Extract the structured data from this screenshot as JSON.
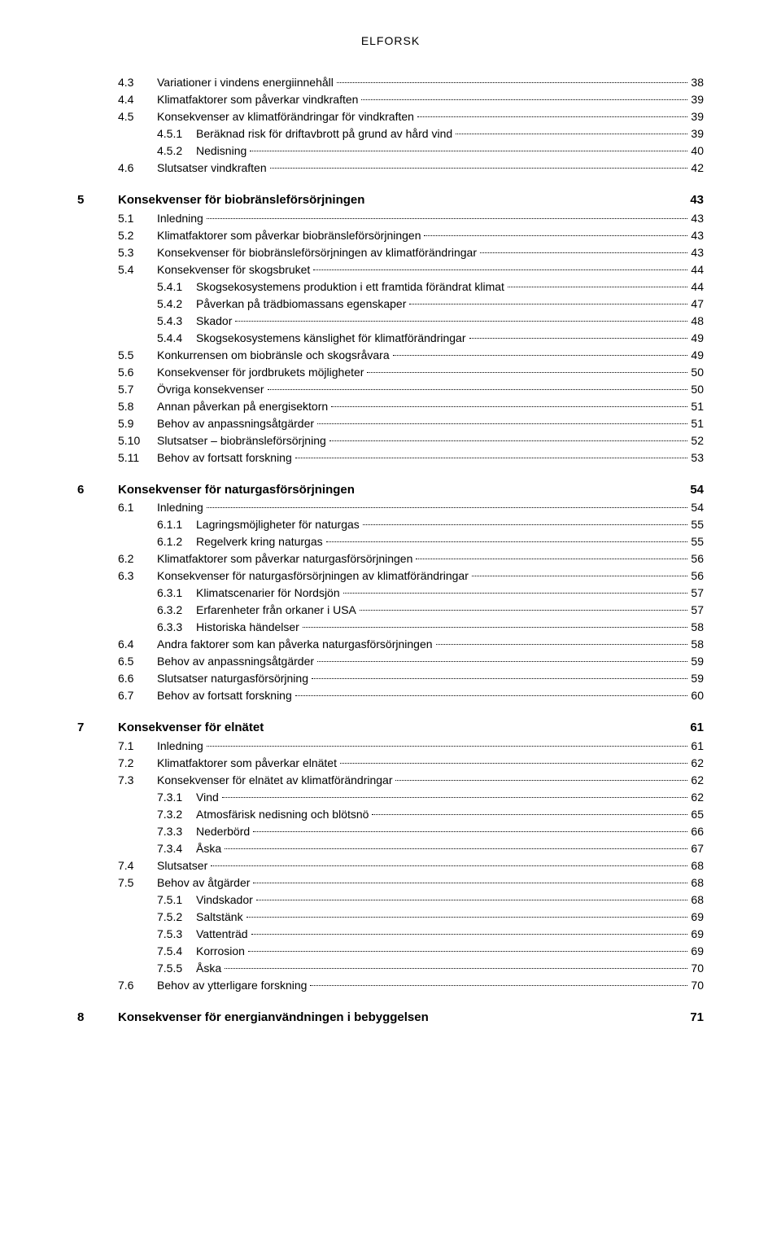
{
  "brand": "ELFORSK",
  "style": {
    "font_family": "Arial",
    "body_font_size": 14,
    "heading_font_size": 15,
    "text_color": "#000000",
    "background_color": "#ffffff",
    "leader_style": "dotted"
  },
  "toc": [
    {
      "level": 2,
      "num": "4.3",
      "label": "Variationer i vindens energiinnehåll",
      "page": "38"
    },
    {
      "level": 2,
      "num": "4.4",
      "label": "Klimatfaktorer som påverkar vindkraften",
      "page": "39"
    },
    {
      "level": 2,
      "num": "4.5",
      "label": "Konsekvenser av klimatförändringar för vindkraften",
      "page": "39"
    },
    {
      "level": 3,
      "num": "4.5.1",
      "label": "Beräknad risk för driftavbrott på grund av hård vind",
      "page": "39"
    },
    {
      "level": 3,
      "num": "4.5.2",
      "label": "Nedisning",
      "page": "40"
    },
    {
      "level": 2,
      "num": "4.6",
      "label": "Slutsatser vindkraften",
      "page": "42"
    },
    {
      "level": 1,
      "num": "5",
      "label": "Konsekvenser för biobränsleförsörjningen",
      "page": "43"
    },
    {
      "level": 2,
      "num": "5.1",
      "label": "Inledning",
      "page": "43"
    },
    {
      "level": 2,
      "num": "5.2",
      "label": "Klimatfaktorer som påverkar biobränsleförsörjningen",
      "page": "43"
    },
    {
      "level": 2,
      "num": "5.3",
      "label": "Konsekvenser för biobränsleförsörjningen av klimatförändringar",
      "page": "43"
    },
    {
      "level": 2,
      "num": "5.4",
      "label": "Konsekvenser för skogsbruket",
      "page": "44"
    },
    {
      "level": 3,
      "num": "5.4.1",
      "label": "Skogsekosystemens produktion i ett framtida förändrat klimat",
      "page": "44"
    },
    {
      "level": 3,
      "num": "5.4.2",
      "label": "Påverkan på trädbiomassans egenskaper",
      "page": "47"
    },
    {
      "level": 3,
      "num": "5.4.3",
      "label": "Skador",
      "page": "48"
    },
    {
      "level": 3,
      "num": "5.4.4",
      "label": "Skogsekosystemens känslighet för klimatförändringar",
      "page": "49"
    },
    {
      "level": 2,
      "num": "5.5",
      "label": "Konkurrensen om biobränsle och skogsråvara",
      "page": "49"
    },
    {
      "level": 2,
      "num": "5.6",
      "label": "Konsekvenser för jordbrukets möjligheter",
      "page": "50"
    },
    {
      "level": 2,
      "num": "5.7",
      "label": "Övriga konsekvenser",
      "page": "50"
    },
    {
      "level": 2,
      "num": "5.8",
      "label": "Annan påverkan på energisektorn",
      "page": "51"
    },
    {
      "level": 2,
      "num": "5.9",
      "label": "Behov av anpassningsåtgärder",
      "page": "51"
    },
    {
      "level": 2,
      "num": "5.10",
      "label": "Slutsatser – biobränsleförsörjning",
      "page": "52"
    },
    {
      "level": 2,
      "num": "5.11",
      "label": "Behov av fortsatt forskning",
      "page": "53"
    },
    {
      "level": 1,
      "num": "6",
      "label": "Konsekvenser för naturgasförsörjningen",
      "page": "54"
    },
    {
      "level": 2,
      "num": "6.1",
      "label": "Inledning",
      "page": "54"
    },
    {
      "level": 3,
      "num": "6.1.1",
      "label": "Lagringsmöjligheter för naturgas",
      "page": "55"
    },
    {
      "level": 3,
      "num": "6.1.2",
      "label": "Regelverk kring naturgas",
      "page": "55"
    },
    {
      "level": 2,
      "num": "6.2",
      "label": "Klimatfaktorer som påverkar naturgasförsörjningen",
      "page": "56"
    },
    {
      "level": 2,
      "num": "6.3",
      "label": "Konsekvenser för naturgasförsörjningen av klimatförändringar",
      "page": "56"
    },
    {
      "level": 3,
      "num": "6.3.1",
      "label": "Klimatscenarier för Nordsjön",
      "page": "57"
    },
    {
      "level": 3,
      "num": "6.3.2",
      "label": "Erfarenheter från orkaner i USA",
      "page": "57"
    },
    {
      "level": 3,
      "num": "6.3.3",
      "label": "Historiska händelser",
      "page": "58"
    },
    {
      "level": 2,
      "num": "6.4",
      "label": "Andra faktorer som kan påverka naturgasförsörjningen",
      "page": "58"
    },
    {
      "level": 2,
      "num": "6.5",
      "label": "Behov av anpassningsåtgärder",
      "page": "59"
    },
    {
      "level": 2,
      "num": "6.6",
      "label": "Slutsatser naturgasförsörjning",
      "page": "59"
    },
    {
      "level": 2,
      "num": "6.7",
      "label": "Behov av fortsatt forskning",
      "page": "60"
    },
    {
      "level": 1,
      "num": "7",
      "label": "Konsekvenser för elnätet",
      "page": "61"
    },
    {
      "level": 2,
      "num": "7.1",
      "label": "Inledning",
      "page": "61"
    },
    {
      "level": 2,
      "num": "7.2",
      "label": "Klimatfaktorer som påverkar elnätet",
      "page": "62"
    },
    {
      "level": 2,
      "num": "7.3",
      "label": "Konsekvenser för elnätet av klimatförändringar",
      "page": "62"
    },
    {
      "level": 3,
      "num": "7.3.1",
      "label": "Vind",
      "page": "62"
    },
    {
      "level": 3,
      "num": "7.3.2",
      "label": "Atmosfärisk nedisning och blötsnö",
      "page": "65"
    },
    {
      "level": 3,
      "num": "7.3.3",
      "label": "Nederbörd",
      "page": "66"
    },
    {
      "level": 3,
      "num": "7.3.4",
      "label": "Åska",
      "page": "67"
    },
    {
      "level": 2,
      "num": "7.4",
      "label": "Slutsatser",
      "page": "68"
    },
    {
      "level": 2,
      "num": "7.5",
      "label": "Behov av åtgärder",
      "page": "68"
    },
    {
      "level": 3,
      "num": "7.5.1",
      "label": "Vindskador",
      "page": "68"
    },
    {
      "level": 3,
      "num": "7.5.2",
      "label": "Saltstänk",
      "page": "69"
    },
    {
      "level": 3,
      "num": "7.5.3",
      "label": "Vattenträd",
      "page": "69"
    },
    {
      "level": 3,
      "num": "7.5.4",
      "label": "Korrosion",
      "page": "69"
    },
    {
      "level": 3,
      "num": "7.5.5",
      "label": "Åska",
      "page": "70"
    },
    {
      "level": 2,
      "num": "7.6",
      "label": "Behov av ytterligare forskning",
      "page": "70"
    },
    {
      "level": 1,
      "num": "8",
      "label": "Konsekvenser för energianvändningen i bebyggelsen",
      "page": "71"
    }
  ]
}
